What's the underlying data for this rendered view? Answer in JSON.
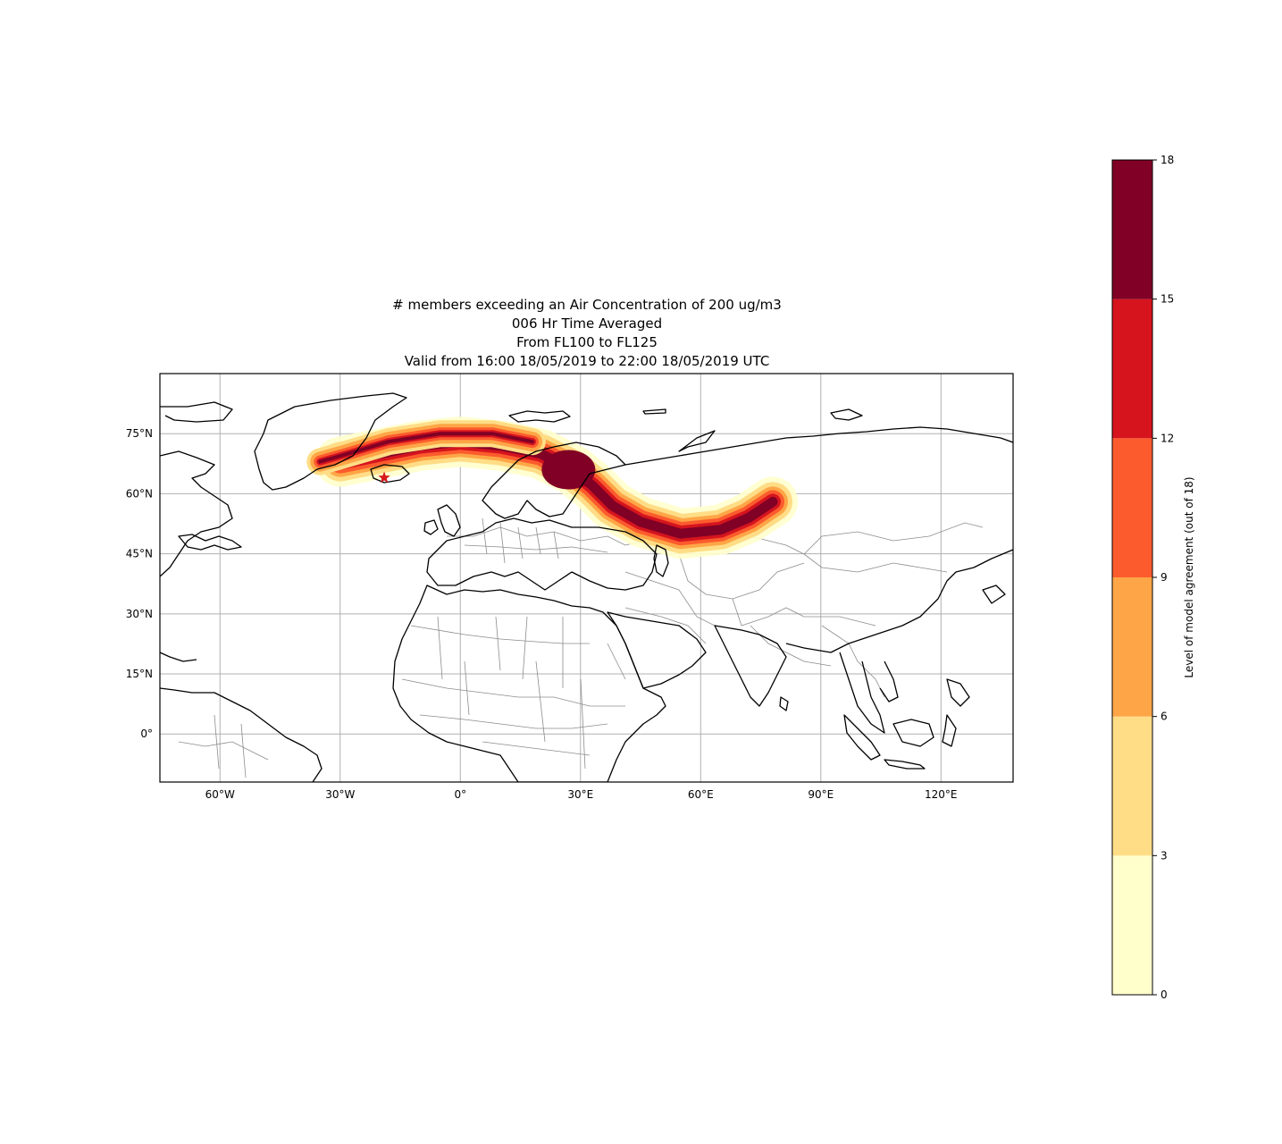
{
  "map": {
    "title_lines": [
      "# members exceeding an Air Concentration of 200 ug/m3",
      "006 Hr Time Averaged",
      "From FL100 to FL125",
      "Valid from 16:00 18/05/2019 to 22:00 18/05/2019 UTC"
    ],
    "projection": "PlateCarree",
    "lon_range": [
      -75,
      138
    ],
    "lat_range": [
      -12,
      90
    ],
    "gridlines": true,
    "lon_ticks": [
      {
        "value": -60,
        "label": "60°W"
      },
      {
        "value": -30,
        "label": "30°W"
      },
      {
        "value": 0,
        "label": "0°"
      },
      {
        "value": 30,
        "label": "30°E"
      },
      {
        "value": 60,
        "label": "60°E"
      },
      {
        "value": 90,
        "label": "90°E"
      },
      {
        "value": 120,
        "label": "120°E"
      }
    ],
    "lat_ticks": [
      {
        "value": 75,
        "label": "75°N"
      },
      {
        "value": 60,
        "label": "60°N"
      },
      {
        "value": 45,
        "label": "45°N"
      },
      {
        "value": 30,
        "label": "30°N"
      },
      {
        "value": 15,
        "label": "15°N"
      },
      {
        "value": 0,
        "label": "0°"
      }
    ],
    "source_marker": {
      "name": "source-star",
      "lon": -19,
      "lat": 64,
      "color": "#d7191c"
    }
  },
  "colorbar": {
    "label": "Level of model agreement (out of 18)",
    "ticks": [
      "0",
      "3",
      "6",
      "9",
      "12",
      "15",
      "18"
    ],
    "levels": [
      0,
      3,
      6,
      9,
      12,
      15,
      18
    ],
    "colors": [
      "#ffffcc",
      "#ffdd86",
      "#fea647",
      "#fc5b2d",
      "#d5141e",
      "#800026"
    ]
  },
  "plume": {
    "core_path_lonlat": [
      [
        -30,
        68
      ],
      [
        -20,
        70
      ],
      [
        -10,
        72
      ],
      [
        0,
        73
      ],
      [
        10,
        72
      ],
      [
        20,
        70
      ],
      [
        28,
        66
      ],
      [
        33,
        62
      ],
      [
        38,
        57
      ],
      [
        45,
        53
      ],
      [
        55,
        50
      ],
      [
        65,
        51
      ],
      [
        72,
        54
      ],
      [
        78,
        58
      ]
    ],
    "bands": [
      {
        "level": "1-3",
        "color": "#ffffcc"
      },
      {
        "level": "4-6",
        "color": "#ffdd86"
      },
      {
        "level": "7-9",
        "color": "#fea647"
      },
      {
        "level": "10-12",
        "color": "#fc5b2d"
      },
      {
        "level": "13-15",
        "color": "#d5141e"
      },
      {
        "level": "16-18",
        "color": "#800026"
      }
    ]
  }
}
